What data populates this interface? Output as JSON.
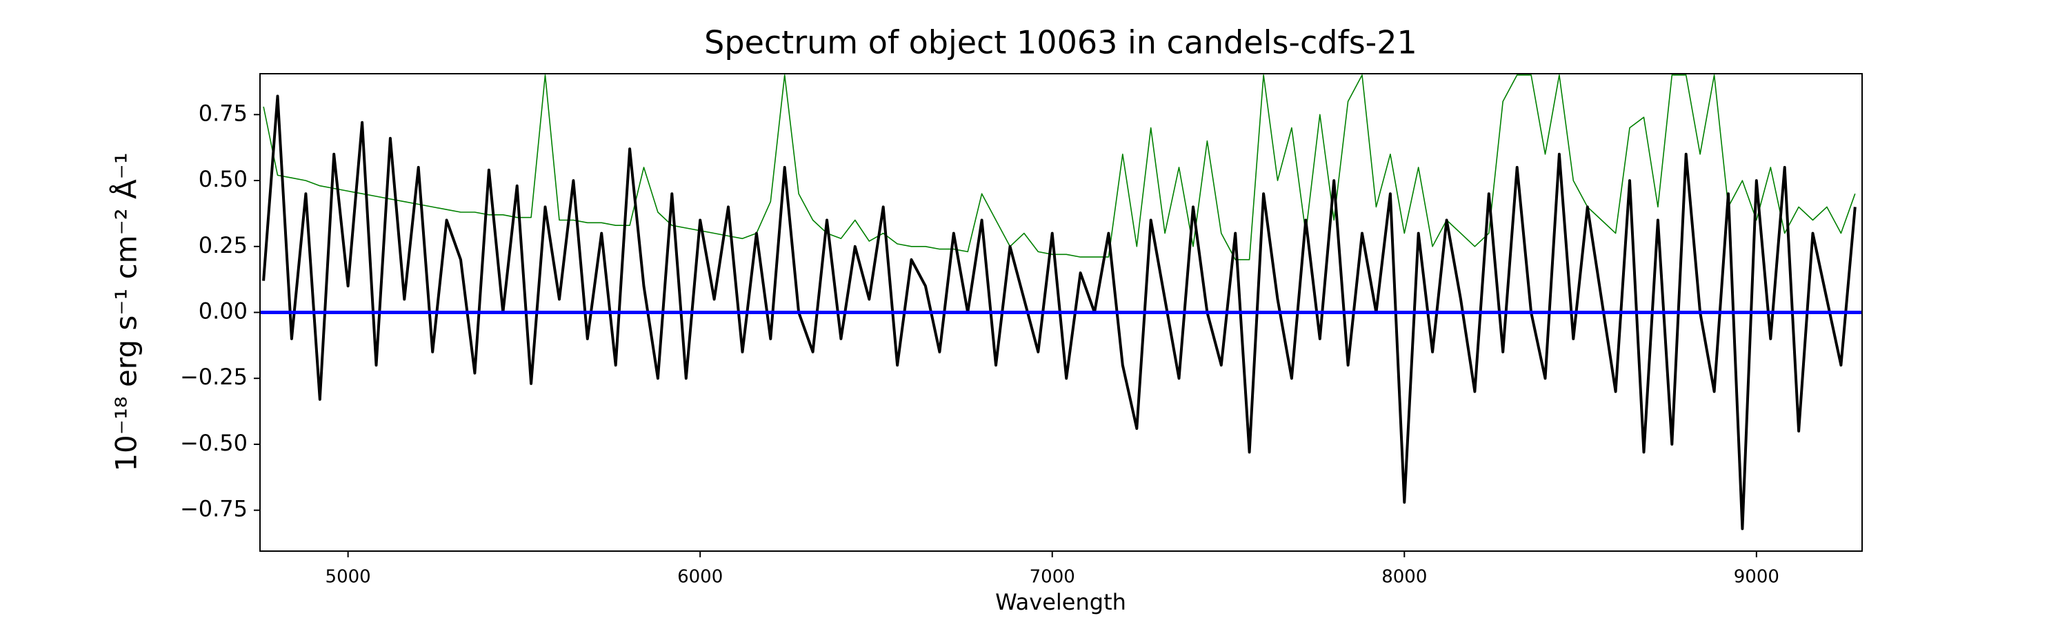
{
  "chart_data": {
    "type": "line",
    "title": "Spectrum of object 10063 in candels-cdfs-21",
    "xlabel": "Wavelength",
    "ylabel": "10⁻¹⁸ erg s⁻¹ cm⁻² Å⁻¹",
    "xlim": [
      4750,
      9300
    ],
    "ylim": [
      -0.905,
      0.905
    ],
    "xticks": [
      5000,
      6000,
      7000,
      8000,
      9000
    ],
    "yticks": [
      {
        "value": -0.75,
        "label": "−0.75"
      },
      {
        "value": -0.5,
        "label": "−0.50"
      },
      {
        "value": -0.25,
        "label": "−0.25"
      },
      {
        "value": 0,
        "label": "0.00"
      },
      {
        "value": 0.25,
        "label": "0.25"
      },
      {
        "value": 0.5,
        "label": "0.50"
      },
      {
        "value": 0.75,
        "label": "0.75"
      }
    ],
    "x": [
      4760,
      4800,
      4840,
      4880,
      4920,
      4960,
      5000,
      5040,
      5080,
      5120,
      5160,
      5200,
      5240,
      5280,
      5320,
      5360,
      5400,
      5440,
      5480,
      5520,
      5560,
      5600,
      5640,
      5680,
      5720,
      5760,
      5800,
      5840,
      5880,
      5920,
      5960,
      6000,
      6040,
      6080,
      6120,
      6160,
      6200,
      6240,
      6280,
      6320,
      6360,
      6400,
      6440,
      6480,
      6520,
      6560,
      6600,
      6640,
      6680,
      6720,
      6760,
      6800,
      6840,
      6880,
      6920,
      6960,
      7000,
      7040,
      7080,
      7120,
      7160,
      7200,
      7240,
      7280,
      7320,
      7360,
      7400,
      7440,
      7480,
      7520,
      7560,
      7600,
      7640,
      7680,
      7720,
      7760,
      7800,
      7840,
      7880,
      7920,
      7960,
      8000,
      8040,
      8080,
      8120,
      8160,
      8200,
      8240,
      8280,
      8320,
      8360,
      8400,
      8440,
      8480,
      8520,
      8560,
      8600,
      8640,
      8680,
      8720,
      8760,
      8800,
      8840,
      8880,
      8920,
      8960,
      9000,
      9040,
      9080,
      9120,
      9160,
      9200,
      9240,
      9280
    ],
    "series": [
      {
        "color": "#008000",
        "width": 1.6,
        "values": [
          0.78,
          0.52,
          0.51,
          0.5,
          0.48,
          0.47,
          0.46,
          0.45,
          0.44,
          0.43,
          0.42,
          0.41,
          0.4,
          0.39,
          0.38,
          0.38,
          0.37,
          0.37,
          0.36,
          0.36,
          0.9,
          0.35,
          0.35,
          0.34,
          0.34,
          0.33,
          0.33,
          0.55,
          0.38,
          0.33,
          0.32,
          0.31,
          0.3,
          0.29,
          0.28,
          0.3,
          0.42,
          0.9,
          0.45,
          0.35,
          0.3,
          0.28,
          0.35,
          0.27,
          0.3,
          0.26,
          0.25,
          0.25,
          0.24,
          0.24,
          0.23,
          0.45,
          0.35,
          0.25,
          0.3,
          0.23,
          0.22,
          0.22,
          0.21,
          0.21,
          0.21,
          0.6,
          0.25,
          0.7,
          0.3,
          0.55,
          0.25,
          0.65,
          0.3,
          0.2,
          0.2,
          0.9,
          0.5,
          0.7,
          0.3,
          0.75,
          0.35,
          0.8,
          0.9,
          0.4,
          0.6,
          0.3,
          0.55,
          0.25,
          0.35,
          0.3,
          0.25,
          0.3,
          0.8,
          0.9,
          0.9,
          0.6,
          0.9,
          0.5,
          0.4,
          0.35,
          0.3,
          0.7,
          0.74,
          0.4,
          0.9,
          0.9,
          0.6,
          0.9,
          0.4,
          0.5,
          0.35,
          0.55,
          0.3,
          0.4,
          0.35,
          0.4,
          0.3,
          0.45
        ]
      },
      {
        "color": "#000000",
        "width": 4,
        "values": [
          0.12,
          0.82,
          -0.1,
          0.45,
          -0.33,
          0.6,
          0.1,
          0.72,
          -0.2,
          0.66,
          0.05,
          0.55,
          -0.15,
          0.35,
          0.2,
          -0.23,
          0.54,
          0.0,
          0.48,
          -0.27,
          0.4,
          0.05,
          0.5,
          -0.1,
          0.3,
          -0.2,
          0.62,
          0.1,
          -0.25,
          0.45,
          -0.25,
          0.35,
          0.05,
          0.4,
          -0.15,
          0.3,
          -0.1,
          0.55,
          0.0,
          -0.15,
          0.35,
          -0.1,
          0.25,
          0.05,
          0.4,
          -0.2,
          0.2,
          0.1,
          -0.15,
          0.3,
          0.0,
          0.35,
          -0.2,
          0.25,
          0.05,
          -0.15,
          0.3,
          -0.25,
          0.15,
          0.0,
          0.3,
          -0.2,
          -0.44,
          0.35,
          0.05,
          -0.25,
          0.4,
          0.0,
          -0.2,
          0.3,
          -0.53,
          0.45,
          0.05,
          -0.25,
          0.35,
          -0.1,
          0.5,
          -0.2,
          0.3,
          0.0,
          0.45,
          -0.72,
          0.3,
          -0.15,
          0.35,
          0.05,
          -0.3,
          0.45,
          -0.15,
          0.55,
          0.0,
          -0.25,
          0.6,
          -0.1,
          0.4,
          0.05,
          -0.3,
          0.5,
          -0.53,
          0.35,
          -0.5,
          0.6,
          0.0,
          -0.3,
          0.45,
          -0.82,
          0.5,
          -0.1,
          0.55,
          -0.45,
          0.3,
          0.05,
          -0.2,
          0.4
        ]
      },
      {
        "color": "#0000ff",
        "width": 5,
        "x": [
          4750,
          9300
        ],
        "values": [
          0,
          0
        ]
      }
    ]
  }
}
